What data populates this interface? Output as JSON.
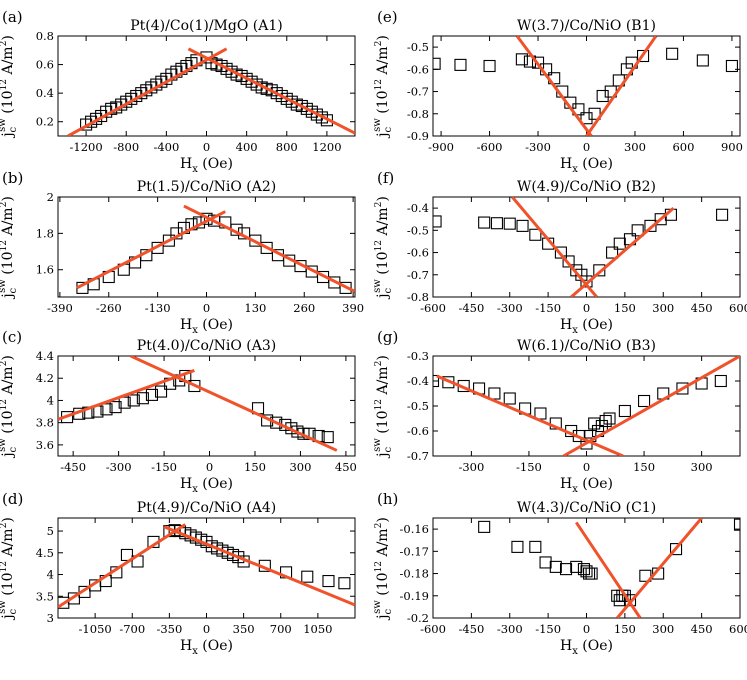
{
  "chart_data": [
    {
      "type": "scatter",
      "panel_label": "(a)",
      "title": "Pt(4)/Co(1)/MgO (A1)",
      "xlabel": "H",
      "xlabel_sub": "x",
      "xlabel_unit": "(Oe)",
      "ylabel": "j",
      "ylabel_sub": "c",
      "ylabel_sup": "sw",
      "ylabel_unit_pre": "(10",
      "ylabel_unit_exp": "12",
      "ylabel_unit_post": " A/m",
      "ylabel_unit_exp2": "2",
      "ylabel_unit_close": ")",
      "xlim": [
        -1480,
        1480
      ],
      "ylim": [
        0.1,
        0.8
      ],
      "xticks": [
        -1200,
        -800,
        -400,
        0,
        400,
        800,
        1200
      ],
      "yticks": [
        0.2,
        0.4,
        0.6,
        0.8
      ],
      "ytick_labels": [
        "0.2",
        "0.4",
        "0.6",
        "0.8"
      ],
      "fit_color": "#f0522a",
      "x": [
        -1200,
        -1150,
        -1100,
        -1050,
        -1000,
        -950,
        -900,
        -850,
        -800,
        -750,
        -700,
        -650,
        -600,
        -550,
        -500,
        -450,
        -400,
        -350,
        -300,
        -250,
        -200,
        -150,
        -100,
        0,
        50,
        100,
        150,
        200,
        250,
        300,
        350,
        400,
        450,
        500,
        550,
        600,
        650,
        700,
        750,
        800,
        850,
        900,
        950,
        1000,
        1050,
        1100,
        1150,
        1200
      ],
      "y": [
        0.18,
        0.2,
        0.22,
        0.24,
        0.27,
        0.29,
        0.3,
        0.32,
        0.34,
        0.36,
        0.38,
        0.4,
        0.42,
        0.44,
        0.46,
        0.48,
        0.5,
        0.53,
        0.55,
        0.57,
        0.59,
        0.61,
        0.63,
        0.65,
        0.61,
        0.6,
        0.59,
        0.57,
        0.55,
        0.53,
        0.52,
        0.5,
        0.48,
        0.46,
        0.44,
        0.43,
        0.42,
        0.4,
        0.38,
        0.36,
        0.34,
        0.32,
        0.31,
        0.29,
        0.27,
        0.25,
        0.23,
        0.21
      ],
      "fit_lines": [
        {
          "x": [
            -1380,
            200
          ],
          "y": [
            0.1,
            0.71
          ]
        },
        {
          "x": [
            -180,
            1480
          ],
          "y": [
            0.71,
            0.12
          ]
        }
      ]
    },
    {
      "type": "scatter",
      "panel_label": "(b)",
      "title": "Pt(1.5)/Co/NiO (A2)",
      "xlabel": "H",
      "xlabel_sub": "x",
      "xlabel_unit": "(Oe)",
      "ylabel": "j",
      "ylabel_sub": "c",
      "ylabel_sup": "sw",
      "ylabel_unit_pre": "(10",
      "ylabel_unit_exp": "12",
      "ylabel_unit_post": " A/m",
      "ylabel_unit_exp2": "2",
      "ylabel_unit_close": ")",
      "xlim": [
        -395,
        395
      ],
      "ylim": [
        1.45,
        2.0
      ],
      "xticks": [
        -390,
        -260,
        -130,
        0,
        130,
        260,
        390
      ],
      "yticks": [
        1.6,
        1.8,
        2.0
      ],
      "ytick_labels": [
        "1.6",
        "1.8",
        "2"
      ],
      "fit_color": "#f0522a",
      "x": [
        -330,
        -300,
        -260,
        -220,
        -190,
        -160,
        -130,
        -100,
        -80,
        -60,
        -40,
        -20,
        0,
        20,
        50,
        80,
        100,
        130,
        160,
        190,
        220,
        250,
        280,
        310,
        340,
        370
      ],
      "y": [
        1.5,
        1.52,
        1.56,
        1.6,
        1.64,
        1.68,
        1.72,
        1.76,
        1.8,
        1.83,
        1.85,
        1.86,
        1.88,
        1.87,
        1.86,
        1.82,
        1.8,
        1.76,
        1.72,
        1.68,
        1.65,
        1.62,
        1.59,
        1.56,
        1.53,
        1.5
      ],
      "fit_lines": [
        {
          "x": [
            -345,
            50
          ],
          "y": [
            1.5,
            1.92
          ]
        },
        {
          "x": [
            -60,
            395
          ],
          "y": [
            1.95,
            1.48
          ]
        }
      ]
    },
    {
      "type": "scatter",
      "panel_label": "(c)",
      "title": "Pt(4.0)/Co/NiO (A3)",
      "xlabel": "H",
      "xlabel_sub": "x",
      "xlabel_unit": "(Oe)",
      "ylabel": "j",
      "ylabel_sub": "c",
      "ylabel_sup": "sw",
      "ylabel_unit_pre": "(10",
      "ylabel_unit_exp": "12",
      "ylabel_unit_post": " A/m",
      "ylabel_unit_exp2": "2",
      "ylabel_unit_close": ")",
      "xlim": [
        -500,
        480
      ],
      "ylim": [
        3.5,
        4.4
      ],
      "xticks": [
        -450,
        -300,
        -150,
        0,
        150,
        300,
        450
      ],
      "yticks": [
        3.6,
        3.8,
        4.0,
        4.2,
        4.4
      ],
      "ytick_labels": [
        "3.6",
        "3.8",
        "4",
        "4.2",
        "4.4"
      ],
      "fit_color": "#f0522a",
      "x": [
        -470,
        -430,
        -400,
        -370,
        -340,
        -310,
        -280,
        -250,
        -220,
        -190,
        -160,
        -130,
        -100,
        -80,
        -50,
        160,
        190,
        220,
        250,
        270,
        290,
        310,
        330,
        360,
        390
      ],
      "y": [
        3.85,
        3.88,
        3.89,
        3.9,
        3.92,
        3.94,
        3.98,
        4.0,
        4.02,
        4.05,
        4.08,
        4.15,
        4.18,
        4.22,
        4.13,
        3.93,
        3.82,
        3.8,
        3.78,
        3.75,
        3.72,
        3.7,
        3.7,
        3.68,
        3.67
      ],
      "fit_lines": [
        {
          "x": [
            -500,
            -50
          ],
          "y": [
            3.83,
            4.27
          ]
        },
        {
          "x": [
            -260,
            420
          ],
          "y": [
            4.4,
            3.55
          ]
        }
      ]
    },
    {
      "type": "scatter",
      "panel_label": "(d)",
      "title": "Pt(4.9)/Co/NiO (A4)",
      "xlabel": "H",
      "xlabel_sub": "x",
      "xlabel_unit": "(Oe)",
      "ylabel": "j",
      "ylabel_sub": "c",
      "ylabel_sup": "sw",
      "ylabel_unit_pre": "(10",
      "ylabel_unit_exp": "12",
      "ylabel_unit_post": " A/m",
      "ylabel_unit_exp2": "2",
      "ylabel_unit_close": ")",
      "xlim": [
        -1400,
        1400
      ],
      "ylim": [
        3.0,
        5.3
      ],
      "xticks": [
        -1050,
        -700,
        -350,
        0,
        350,
        700,
        1050
      ],
      "yticks": [
        3.0,
        3.5,
        4.0,
        4.5,
        5.0
      ],
      "ytick_labels": [
        "3",
        "3.5",
        "4",
        "4.5",
        "5"
      ],
      "fit_color": "#f0522a",
      "x": [
        -1350,
        -1250,
        -1150,
        -1050,
        -950,
        -850,
        -750,
        -650,
        -500,
        -350,
        -300,
        -250,
        -200,
        -150,
        -100,
        -50,
        0,
        50,
        100,
        150,
        200,
        250,
        300,
        350,
        550,
        750,
        950,
        1150,
        1300
      ],
      "y": [
        3.35,
        3.45,
        3.6,
        3.75,
        3.85,
        4.05,
        4.45,
        4.3,
        4.75,
        5.0,
        5.02,
        5.0,
        4.95,
        4.9,
        4.85,
        4.8,
        4.75,
        4.65,
        4.6,
        4.55,
        4.5,
        4.45,
        4.4,
        4.3,
        4.2,
        4.05,
        3.95,
        3.85,
        3.8
      ],
      "fit_lines": [
        {
          "x": [
            -1400,
            -200
          ],
          "y": [
            3.25,
            5.15
          ]
        },
        {
          "x": [
            -400,
            1400
          ],
          "y": [
            5.1,
            3.3
          ]
        }
      ]
    },
    {
      "type": "scatter",
      "panel_label": "(e)",
      "title": "W(3.7)/Co/NiO (B1)",
      "xlabel": "H",
      "xlabel_sub": "x",
      "xlabel_unit": "(Oe)",
      "ylabel": "j",
      "ylabel_sub": "c",
      "ylabel_sup": "sw",
      "ylabel_unit_pre": "(10",
      "ylabel_unit_exp": "12",
      "ylabel_unit_post": " A/m",
      "ylabel_unit_exp2": "2",
      "ylabel_unit_close": ")",
      "xlim": [
        -950,
        950
      ],
      "ylim": [
        -0.9,
        -0.45
      ],
      "xticks": [
        -900,
        -600,
        -300,
        0,
        300,
        600,
        900
      ],
      "yticks": [
        -0.9,
        -0.8,
        -0.7,
        -0.6,
        -0.5
      ],
      "ytick_labels": [
        "-0.9",
        "-0.8",
        "-0.7",
        "-0.6",
        "-0.5"
      ],
      "fit_color": "#f0522a",
      "x": [
        -940,
        -780,
        -600,
        -400,
        -350,
        -300,
        -250,
        -200,
        -150,
        -100,
        -50,
        0,
        50,
        100,
        150,
        200,
        250,
        280,
        350,
        530,
        720,
        900
      ],
      "y": [
        -0.575,
        -0.58,
        -0.585,
        -0.555,
        -0.565,
        -0.57,
        -0.6,
        -0.64,
        -0.7,
        -0.75,
        -0.78,
        -0.82,
        -0.8,
        -0.72,
        -0.7,
        -0.65,
        -0.6,
        -0.57,
        -0.54,
        -0.53,
        -0.56,
        -0.585
      ],
      "fit_lines": [
        {
          "x": [
            -430,
            30
          ],
          "y": [
            -0.45,
            -0.9
          ]
        },
        {
          "x": [
            0,
            430
          ],
          "y": [
            -0.9,
            -0.45
          ]
        }
      ]
    },
    {
      "type": "scatter",
      "panel_label": "(f)",
      "title": "W(4.9)/Co/NiO (B2)",
      "xlabel": "H",
      "xlabel_sub": "x",
      "xlabel_unit": "(Oe)",
      "ylabel": "j",
      "ylabel_sub": "c",
      "ylabel_sup": "sw",
      "ylabel_unit_pre": "(10",
      "ylabel_unit_exp": "12",
      "ylabel_unit_post": " A/m",
      "ylabel_unit_exp2": "2",
      "ylabel_unit_close": ")",
      "xlim": [
        -600,
        600
      ],
      "ylim": [
        -0.8,
        -0.35
      ],
      "xticks": [
        -600,
        -450,
        -300,
        -150,
        0,
        150,
        300,
        450,
        600
      ],
      "yticks": [
        -0.8,
        -0.7,
        -0.6,
        -0.5,
        -0.4
      ],
      "ytick_labels": [
        "-0.8",
        "-0.7",
        "-0.6",
        "-0.5",
        "-0.4"
      ],
      "fit_color": "#f0522a",
      "x": [
        -590,
        -400,
        -350,
        -300,
        -250,
        -200,
        -150,
        -100,
        -70,
        -40,
        -20,
        0,
        50,
        100,
        130,
        170,
        200,
        250,
        290,
        330,
        530
      ],
      "y": [
        -0.46,
        -0.465,
        -0.468,
        -0.47,
        -0.48,
        -0.52,
        -0.56,
        -0.6,
        -0.64,
        -0.68,
        -0.7,
        -0.73,
        -0.68,
        -0.6,
        -0.56,
        -0.54,
        -0.5,
        -0.48,
        -0.45,
        -0.43,
        -0.43
      ],
      "fit_lines": [
        {
          "x": [
            -290,
            40
          ],
          "y": [
            -0.35,
            -0.8
          ]
        },
        {
          "x": [
            -60,
            340
          ],
          "y": [
            -0.8,
            -0.4
          ]
        }
      ]
    },
    {
      "type": "scatter",
      "panel_label": "(g)",
      "title": "W(6.1)/Co/NiO (B3)",
      "xlabel": "H",
      "xlabel_sub": "x",
      "xlabel_unit": "(Oe)",
      "ylabel": "j",
      "ylabel_sub": "c",
      "ylabel_sup": "sw",
      "ylabel_unit_pre": "(10",
      "ylabel_unit_exp": "12",
      "ylabel_unit_post": " A/m",
      "ylabel_unit_exp2": "2",
      "ylabel_unit_close": ")",
      "xlim": [
        -400,
        400
      ],
      "ylim": [
        -0.7,
        -0.3
      ],
      "xticks": [
        -300,
        -150,
        0,
        150,
        300
      ],
      "yticks": [
        -0.7,
        -0.6,
        -0.5,
        -0.4,
        -0.3
      ],
      "ytick_labels": [
        "-0.7",
        "-0.6",
        "-0.5",
        "-0.4",
        "-0.3"
      ],
      "fit_color": "#f0522a",
      "x": [
        -400,
        -360,
        -320,
        -280,
        -240,
        -200,
        -160,
        -120,
        -80,
        -40,
        -20,
        0,
        10,
        20,
        30,
        40,
        50,
        60,
        100,
        150,
        200,
        250,
        300,
        350
      ],
      "y": [
        -0.4,
        -0.405,
        -0.42,
        -0.43,
        -0.45,
        -0.47,
        -0.51,
        -0.53,
        -0.57,
        -0.6,
        -0.62,
        -0.65,
        -0.62,
        -0.57,
        -0.6,
        -0.58,
        -0.56,
        -0.55,
        -0.52,
        -0.48,
        -0.45,
        -0.43,
        -0.41,
        -0.4
      ],
      "fit_lines": [
        {
          "x": [
            -390,
            95
          ],
          "y": [
            -0.38,
            -0.7
          ]
        },
        {
          "x": [
            -60,
            400
          ],
          "y": [
            -0.7,
            -0.3
          ]
        }
      ]
    },
    {
      "type": "scatter",
      "panel_label": "(h)",
      "title": "W(4.3)/Co/NiO (C1)",
      "xlabel": "H",
      "xlabel_sub": "x",
      "xlabel_unit": "(Oe)",
      "ylabel": "j",
      "ylabel_sub": "c",
      "ylabel_sup": "sw",
      "ylabel_unit_pre": "(10",
      "ylabel_unit_exp": "12",
      "ylabel_unit_post": " A/m",
      "ylabel_unit_exp2": "2",
      "ylabel_unit_close": ")",
      "xlim": [
        -600,
        600
      ],
      "ylim": [
        -0.2,
        -0.155
      ],
      "xticks": [
        -600,
        -450,
        -300,
        -150,
        0,
        150,
        300,
        450,
        600
      ],
      "yticks": [
        -0.2,
        -0.19,
        -0.18,
        -0.17,
        -0.16
      ],
      "ytick_labels": [
        "-0.2",
        "-0.19",
        "-0.18",
        "-0.17",
        "-0.16"
      ],
      "fit_color": "#f0522a",
      "x": [
        -400,
        -270,
        -200,
        -160,
        -120,
        -80,
        -40,
        -10,
        0,
        10,
        20,
        120,
        130,
        140,
        150,
        170,
        230,
        280,
        350,
        600
      ],
      "y": [
        -0.159,
        -0.168,
        -0.168,
        -0.175,
        -0.177,
        -0.178,
        -0.177,
        -0.178,
        -0.179,
        -0.18,
        -0.18,
        -0.19,
        -0.192,
        -0.19,
        -0.19,
        -0.192,
        -0.181,
        -0.18,
        -0.169,
        -0.158
      ],
      "fit_lines": [
        {
          "x": [
            -40,
            210
          ],
          "y": [
            -0.157,
            -0.2
          ]
        },
        {
          "x": [
            120,
            450
          ],
          "y": [
            -0.2,
            -0.155
          ]
        }
      ]
    }
  ]
}
